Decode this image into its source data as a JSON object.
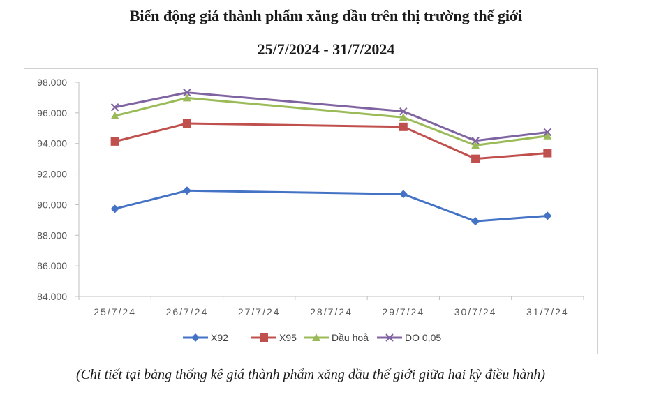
{
  "title": "Biến động giá thành phẩm xăng dầu trên thị trường thế giới",
  "subtitle": "25/7/2024 - 31/7/2024",
  "caption": "(Chi tiết tại bảng thống kê giá thành phẩm xăng dầu thế giới giữa hai kỳ điều hành)",
  "chart_data": {
    "type": "line",
    "title": "Biến động giá thành phẩm xăng dầu trên thị trường thế giới",
    "subtitle": "25/7/2024 - 31/7/2024",
    "xlabel": "",
    "ylabel": "",
    "categories": [
      "25/7/24",
      "26/7/24",
      "27/7/24",
      "28/7/24",
      "29/7/24",
      "30/7/24",
      "31/7/24"
    ],
    "ylim": [
      84000,
      98000
    ],
    "yticks": [
      84000,
      86000,
      88000,
      90000,
      92000,
      94000,
      96000,
      98000
    ],
    "ytick_labels": [
      "84.000",
      "86.000",
      "88.000",
      "90.000",
      "92.000",
      "94.000",
      "96.000",
      "98.000"
    ],
    "grid": false,
    "legend": "bottom",
    "series": [
      {
        "name": "X92",
        "color": "#4472c4",
        "marker": "diamond",
        "values": [
          89730,
          90920,
          null,
          null,
          90690,
          88920,
          89270
        ]
      },
      {
        "name": "X95",
        "color": "#c0504d",
        "marker": "square",
        "values": [
          94130,
          95310,
          null,
          null,
          95090,
          93000,
          93370
        ]
      },
      {
        "name": "Dầu hoả",
        "color": "#9bbb59",
        "marker": "triangle",
        "values": [
          95810,
          96980,
          null,
          null,
          95710,
          93880,
          94500
        ]
      },
      {
        "name": "DO 0,05",
        "color": "#8064a2",
        "marker": "x",
        "values": [
          96370,
          97330,
          null,
          null,
          96100,
          94180,
          94740
        ]
      }
    ]
  }
}
